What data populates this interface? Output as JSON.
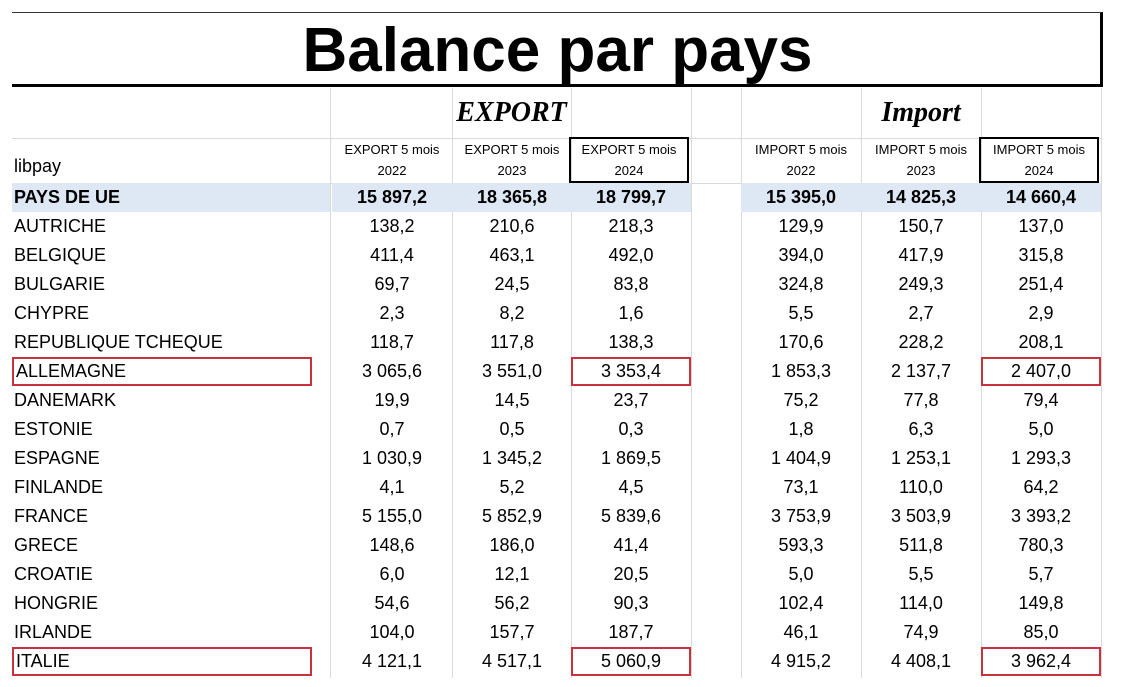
{
  "title": "Balance par pays",
  "table": {
    "label_header": "libpay",
    "export": {
      "title": "EXPORT",
      "headers": [
        "EXPORT 5 mois 2022",
        "EXPORT 5 mois 2023",
        "EXPORT 5 mois 2024"
      ]
    },
    "import": {
      "title": "Import",
      "headers": [
        "IMPORT 5 mois 2022",
        "IMPORT 5 mois 2023",
        "IMPORT 5 mois 2024"
      ]
    },
    "total": {
      "name": "PAYS DE UE",
      "export": [
        "15 897,2",
        "18 365,8",
        "18 799,7"
      ],
      "import": [
        "15 395,0",
        "14 825,3",
        "14 660,4"
      ]
    },
    "rows": [
      {
        "name": "AUTRICHE",
        "export": [
          "138,2",
          "210,6",
          "218,3"
        ],
        "import": [
          "129,9",
          "150,7",
          "137,0"
        ]
      },
      {
        "name": "BELGIQUE",
        "export": [
          "411,4",
          "463,1",
          "492,0"
        ],
        "import": [
          "394,0",
          "417,9",
          "315,8"
        ]
      },
      {
        "name": "BULGARIE",
        "export": [
          "69,7",
          "24,5",
          "83,8"
        ],
        "import": [
          "324,8",
          "249,3",
          "251,4"
        ]
      },
      {
        "name": "CHYPRE",
        "export": [
          "2,3",
          "8,2",
          "1,6"
        ],
        "import": [
          "5,5",
          "2,7",
          "2,9"
        ]
      },
      {
        "name": "REPUBLIQUE TCHEQUE",
        "export": [
          "118,7",
          "117,8",
          "138,3"
        ],
        "import": [
          "170,6",
          "228,2",
          "208,1"
        ]
      },
      {
        "name": "ALLEMAGNE",
        "export": [
          "3 065,6",
          "3 551,0",
          "3 353,4"
        ],
        "import": [
          "1 853,3",
          "2 137,7",
          "2 407,0"
        ]
      },
      {
        "name": "DANEMARK",
        "export": [
          "19,9",
          "14,5",
          "23,7"
        ],
        "import": [
          "75,2",
          "77,8",
          "79,4"
        ]
      },
      {
        "name": "ESTONIE",
        "export": [
          "0,7",
          "0,5",
          "0,3"
        ],
        "import": [
          "1,8",
          "6,3",
          "5,0"
        ]
      },
      {
        "name": "ESPAGNE",
        "export": [
          "1 030,9",
          "1 345,2",
          "1 869,5"
        ],
        "import": [
          "1 404,9",
          "1 253,1",
          "1 293,3"
        ]
      },
      {
        "name": "FINLANDE",
        "export": [
          "4,1",
          "5,2",
          "4,5"
        ],
        "import": [
          "73,1",
          "110,0",
          "64,2"
        ]
      },
      {
        "name": "FRANCE",
        "export": [
          "5 155,0",
          "5 852,9",
          "5 839,6"
        ],
        "import": [
          "3 753,9",
          "3 503,9",
          "3 393,2"
        ]
      },
      {
        "name": "GRECE",
        "export": [
          "148,6",
          "186,0",
          "41,4"
        ],
        "import": [
          "593,3",
          "511,8",
          "780,3"
        ]
      },
      {
        "name": "CROATIE",
        "export": [
          "6,0",
          "12,1",
          "20,5"
        ],
        "import": [
          "5,0",
          "5,5",
          "5,7"
        ]
      },
      {
        "name": "HONGRIE",
        "export": [
          "54,6",
          "56,2",
          "90,3"
        ],
        "import": [
          "102,4",
          "114,0",
          "149,8"
        ]
      },
      {
        "name": "IRLANDE",
        "export": [
          "104,0",
          "157,7",
          "187,7"
        ],
        "import": [
          "46,1",
          "74,9",
          "85,0"
        ]
      },
      {
        "name": "ITALIE",
        "export": [
          "4 121,1",
          "4 517,1",
          "5 060,9"
        ],
        "import": [
          "4 915,2",
          "4 408,1",
          "3 962,4"
        ]
      }
    ]
  }
}
